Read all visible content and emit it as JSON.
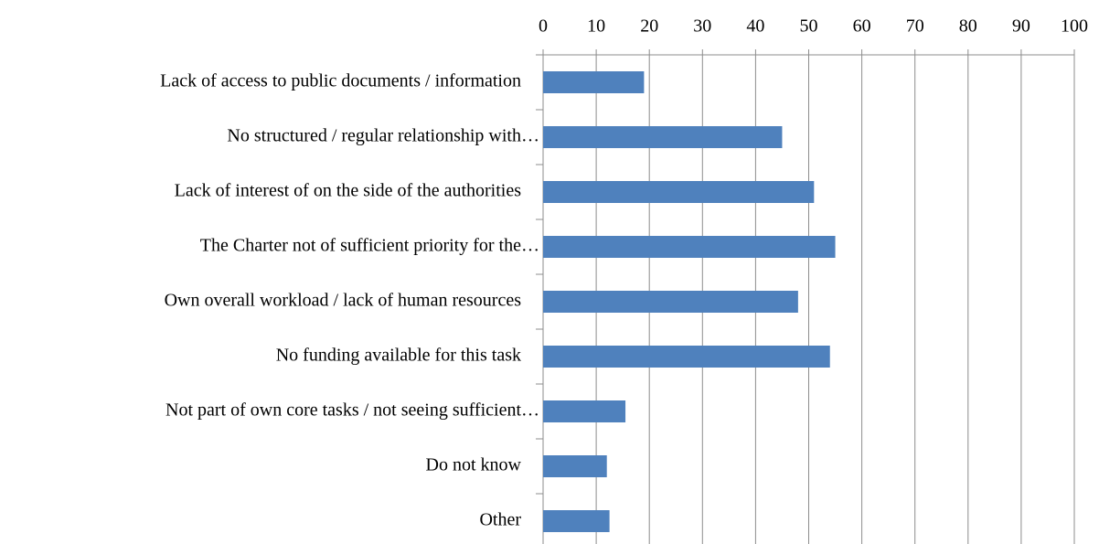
{
  "chart_data": {
    "type": "barh",
    "categories": [
      "Lack of access to public documents / information",
      "No structured / regular relationship with…",
      "Lack of interest of on the side of the authorities",
      "The Charter not of sufficient priority for the…",
      "Own overall workload / lack of human resources",
      "No funding available for this task",
      "Not part of own core tasks / not seeing sufficient…",
      "Do not know",
      "Other"
    ],
    "values": [
      19,
      45,
      51,
      55,
      48,
      54,
      15.5,
      12,
      12.5
    ],
    "color": "#4f81bd",
    "xlim": [
      0,
      100
    ],
    "xticks": [
      0,
      10,
      20,
      30,
      40,
      50,
      60,
      70,
      80,
      90,
      100
    ],
    "grid": true
  }
}
